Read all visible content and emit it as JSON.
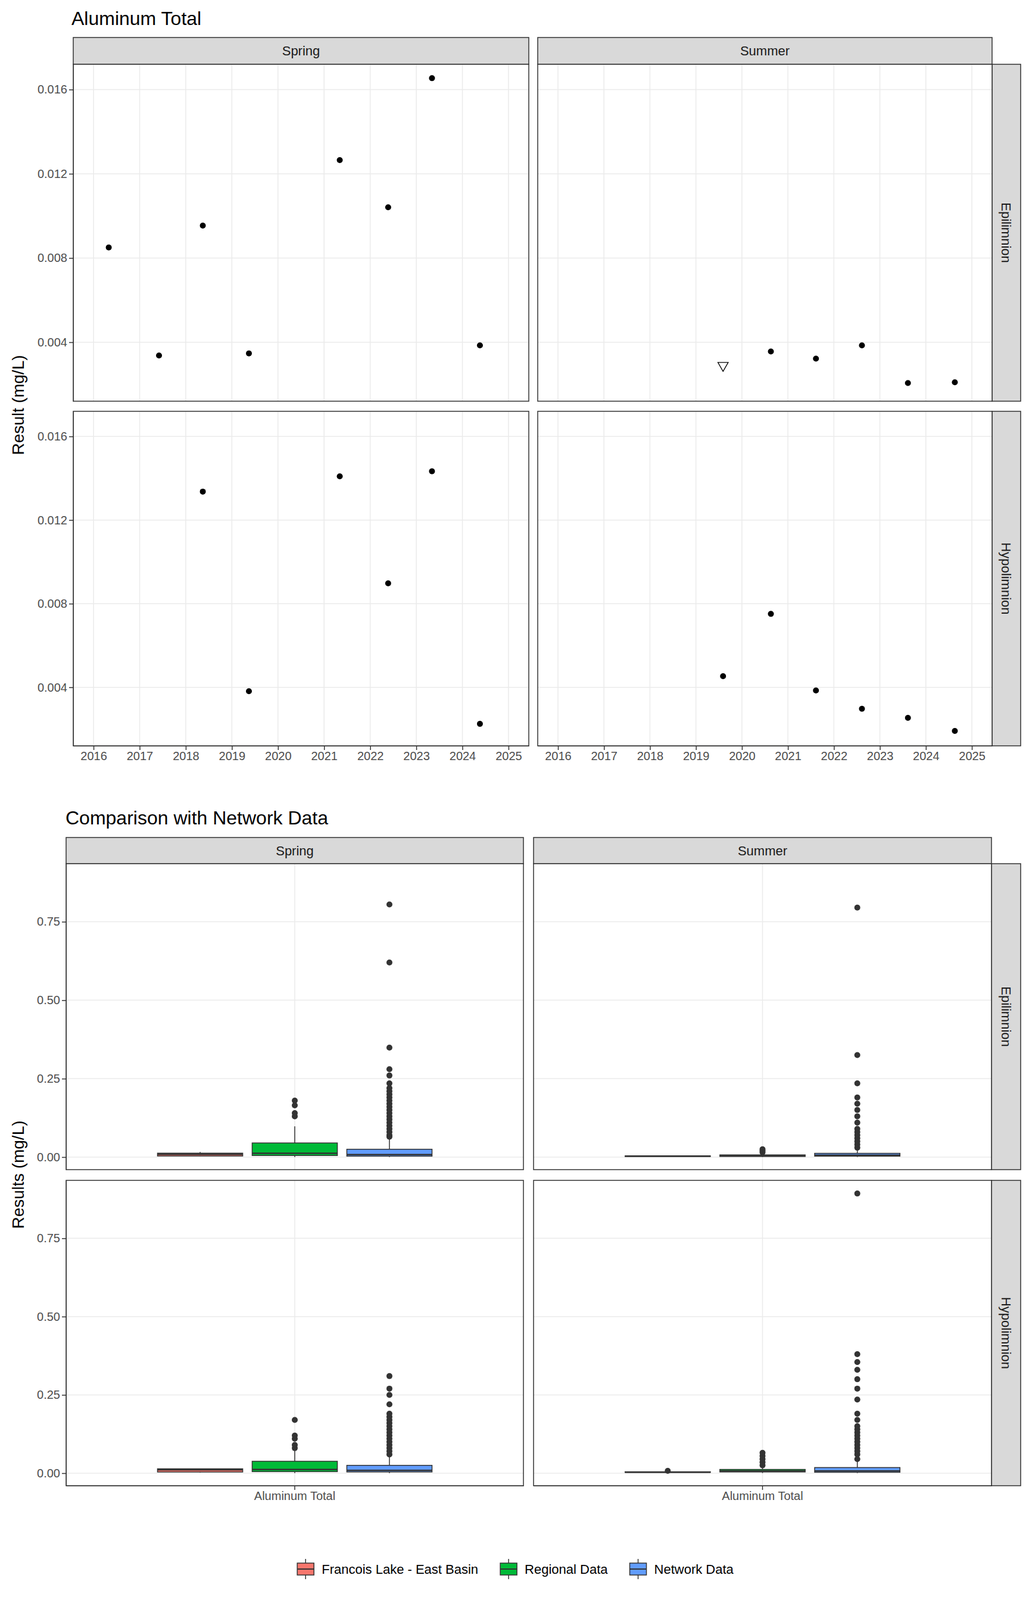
{
  "chart_data": [
    {
      "type": "scatter",
      "title": "Aluminum Total",
      "y_label": "Result (mg/L)",
      "columns": [
        "Spring",
        "Summer"
      ],
      "rows": [
        "Epilimnion",
        "Hypolimnion"
      ],
      "xlim": [
        2015.56,
        2025.44
      ],
      "xticks": [
        2016,
        2017,
        2018,
        2019,
        2020,
        2021,
        2022,
        2023,
        2024,
        2025
      ],
      "ylim": [
        0.0012,
        0.0172
      ],
      "yticks": [
        0.004,
        0.008,
        0.012,
        0.016
      ],
      "grid": true,
      "color": "#000000",
      "panels": [
        [
          {
            "series": [
              {
                "marker": "circle",
                "x": [
                  2016.33,
                  2017.42,
                  2018.37,
                  2019.37,
                  2021.34,
                  2022.39,
                  2023.34,
                  2024.38
                ],
                "values": [
                  0.0085,
                  0.00337,
                  0.00954,
                  0.00347,
                  0.01265,
                  0.01041,
                  0.01654,
                  0.00385
                ]
              }
            ]
          },
          {
            "series": [
              {
                "marker": "triangle-down",
                "x": [
                  2019.59
                ],
                "values": [
                  0.0029
                ]
              },
              {
                "marker": "circle",
                "x": [
                  2020.63,
                  2021.61,
                  2022.61,
                  2023.61,
                  2024.63
                ],
                "values": [
                  0.00356,
                  0.00322,
                  0.00385,
                  0.00206,
                  0.0021
                ]
              }
            ]
          }
        ],
        [
          {
            "series": [
              {
                "marker": "circle",
                "x": [
                  2018.37,
                  2019.37,
                  2021.34,
                  2022.39,
                  2023.34,
                  2024.38
                ],
                "values": [
                  0.01336,
                  0.00381,
                  0.01409,
                  0.00897,
                  0.01433,
                  0.00225
                ]
              }
            ]
          },
          {
            "series": [
              {
                "marker": "circle",
                "x": [
                  2019.59,
                  2020.63,
                  2021.61,
                  2022.61,
                  2023.61,
                  2024.63
                ],
                "values": [
                  0.00453,
                  0.00751,
                  0.00385,
                  0.00297,
                  0.00254,
                  0.00191
                ]
              }
            ]
          }
        ]
      ]
    },
    {
      "type": "box",
      "title": "Comparison with Network Data",
      "y_label": "Results (mg/L)",
      "columns": [
        "Spring",
        "Summer"
      ],
      "rows": [
        "Epilimnion",
        "Hypolimnion"
      ],
      "categories": [
        "Aluminum Total"
      ],
      "ylim": [
        -0.04,
        0.935
      ],
      "yticks": [
        {
          "value": 0,
          "label": "0.00"
        },
        0.25,
        {
          "value": 0.5,
          "label": "0.50"
        },
        0.75
      ],
      "grid": true,
      "legend": "bottom",
      "series": [
        {
          "name": "Francois Lake - East Basin",
          "color": "#F8766D"
        },
        {
          "name": "Regional Data",
          "color": "#00BA38"
        },
        {
          "name": "Network Data",
          "color": "#619CFF"
        }
      ],
      "panels": [
        [
          {
            "boxes": [
              {
                "whisker_low": 0.0033,
                "q1": 0.0035,
                "median": 0.009,
                "q3": 0.0125,
                "whisker_high": 0.0165,
                "outliers": []
              },
              {
                "whisker_low": 0.0005,
                "q1": 0.005,
                "median": 0.012,
                "q3": 0.045,
                "whisker_high": 0.098,
                "outliers": [
                  0.13,
                  0.14,
                  0.165,
                  0.18
                ]
              },
              {
                "whisker_low": 0.0005,
                "q1": 0.003,
                "median": 0.008,
                "q3": 0.025,
                "whisker_high": 0.06,
                "outliers": [
                  0.065,
                  0.07,
                  0.08,
                  0.09,
                  0.1,
                  0.11,
                  0.12,
                  0.13,
                  0.14,
                  0.15,
                  0.16,
                  0.17,
                  0.18,
                  0.19,
                  0.2,
                  0.21,
                  0.22,
                  0.235,
                  0.26,
                  0.28,
                  0.349,
                  0.62,
                  0.805
                ]
              }
            ]
          },
          {
            "boxes": [
              {
                "whisker_low": 0.002,
                "q1": 0.002,
                "median": 0.003,
                "q3": 0.0037,
                "whisker_high": 0.0038,
                "outliers": []
              },
              {
                "whisker_low": 0.0005,
                "q1": 0.002,
                "median": 0.004,
                "q3": 0.007,
                "whisker_high": 0.012,
                "outliers": [
                  0.015,
                  0.02,
                  0.025
                ]
              },
              {
                "whisker_low": 0.0005,
                "q1": 0.003,
                "median": 0.006,
                "q3": 0.012,
                "whisker_high": 0.025,
                "outliers": [
                  0.03,
                  0.04,
                  0.05,
                  0.06,
                  0.07,
                  0.08,
                  0.09,
                  0.11,
                  0.13,
                  0.15,
                  0.17,
                  0.19,
                  0.235,
                  0.325,
                  0.795
                ]
              }
            ]
          }
        ],
        [
          {
            "boxes": [
              {
                "whisker_low": 0.0022,
                "q1": 0.0038,
                "median": 0.011,
                "q3": 0.014,
                "whisker_high": 0.0143,
                "outliers": []
              },
              {
                "whisker_low": 0.0005,
                "q1": 0.005,
                "median": 0.012,
                "q3": 0.038,
                "whisker_high": 0.075,
                "outliers": [
                  0.08,
                  0.09,
                  0.11,
                  0.12,
                  0.17
                ]
              },
              {
                "whisker_low": 0.0005,
                "q1": 0.004,
                "median": 0.009,
                "q3": 0.025,
                "whisker_high": 0.055,
                "outliers": [
                  0.06,
                  0.07,
                  0.08,
                  0.09,
                  0.1,
                  0.11,
                  0.12,
                  0.13,
                  0.14,
                  0.15,
                  0.16,
                  0.17,
                  0.18,
                  0.19,
                  0.22,
                  0.25,
                  0.27,
                  0.31
                ]
              }
            ]
          },
          {
            "boxes": [
              {
                "whisker_low": 0.0019,
                "q1": 0.0026,
                "median": 0.0034,
                "q3": 0.0045,
                "whisker_high": 0.0045,
                "outliers": [
                  0.0075
                ]
              },
              {
                "whisker_low": 0.0005,
                "q1": 0.004,
                "median": 0.007,
                "q3": 0.012,
                "whisker_high": 0.02,
                "outliers": [
                  0.025,
                  0.035,
                  0.045,
                  0.055,
                  0.065
                ]
              },
              {
                "whisker_low": 0.0005,
                "q1": 0.003,
                "median": 0.007,
                "q3": 0.018,
                "whisker_high": 0.04,
                "outliers": [
                  0.045,
                  0.06,
                  0.07,
                  0.08,
                  0.09,
                  0.1,
                  0.11,
                  0.12,
                  0.13,
                  0.14,
                  0.15,
                  0.17,
                  0.19,
                  0.235,
                  0.27,
                  0.3,
                  0.33,
                  0.355,
                  0.38,
                  0.893
                ]
              }
            ]
          }
        ]
      ]
    }
  ]
}
